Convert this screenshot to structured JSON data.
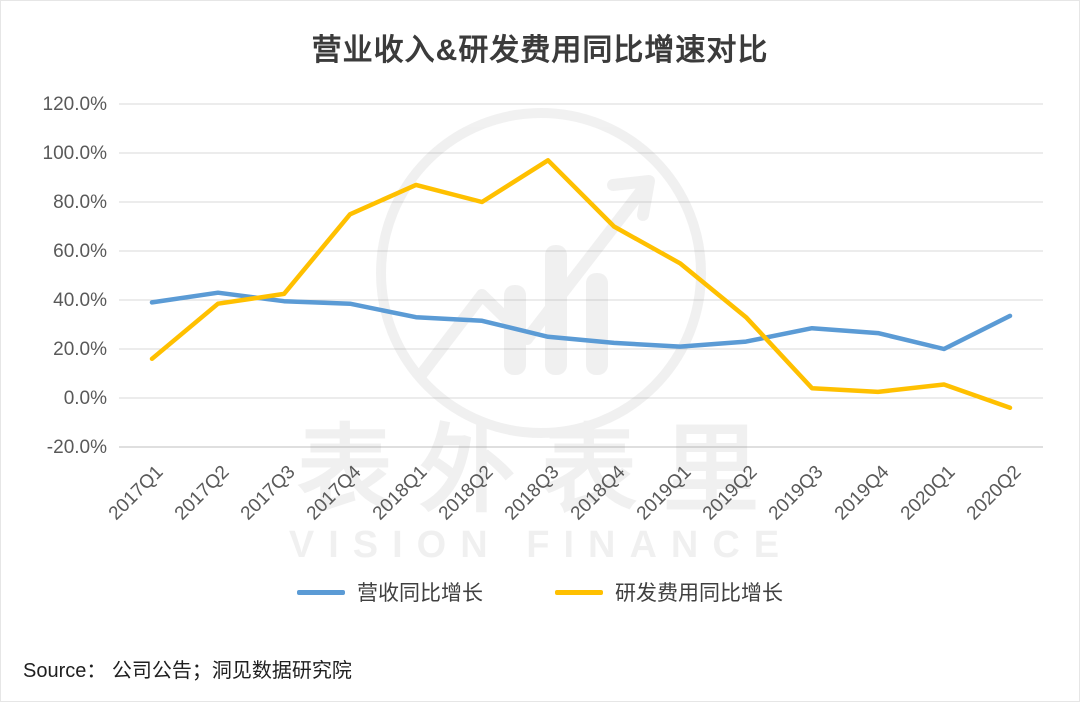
{
  "source_label": "Source： 公司公告；洞见数据研究院",
  "watermark": {
    "cn": "表外表里",
    "en": "VISION FINANCE"
  },
  "chart_data": {
    "type": "line",
    "title": "营业收入&研发费用同比增速对比",
    "categories": [
      "2017Q1",
      "2017Q2",
      "2017Q3",
      "2017Q4",
      "2018Q1",
      "2018Q2",
      "2018Q3",
      "2018Q4",
      "2019Q1",
      "2019Q2",
      "2019Q3",
      "2019Q4",
      "2020Q1",
      "2020Q2"
    ],
    "series": [
      {
        "name": "营收同比增长",
        "color": "#5B9BD5",
        "values": [
          39,
          43,
          39.5,
          38.5,
          33,
          31.5,
          25,
          22.5,
          21,
          23,
          28.5,
          26.5,
          20,
          33.5
        ]
      },
      {
        "name": "研发费用同比增长",
        "color": "#FFC000",
        "values": [
          16,
          38.5,
          42.5,
          75,
          87,
          80,
          97,
          70,
          55,
          33,
          4,
          2.5,
          5.5,
          -4
        ]
      }
    ],
    "ylim": [
      -20,
      120
    ],
    "ytick_step": 20,
    "ytick_labels": [
      "120.0%",
      "100.0%",
      "80.0%",
      "60.0%",
      "40.0%",
      "20.0%",
      "0.0%",
      "-20.0%"
    ],
    "ylabel": "",
    "xlabel": "",
    "grid": true,
    "legend_position": "bottom",
    "axis_label_color": "#595959",
    "grid_color": "#D9D9D9",
    "axis_line_color": "#BFBFBF"
  }
}
